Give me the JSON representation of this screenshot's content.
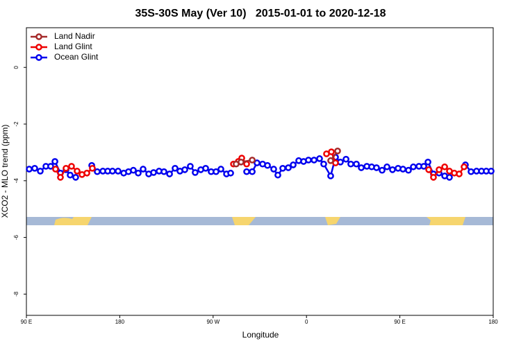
{
  "chart_data": {
    "type": "line",
    "title": "35S-30S May (Ver 10)   2015-01-01 to 2020-12-18",
    "x_label": "Longitude",
    "y_label": "XCO2 - MLO trend (ppm)",
    "xlim": [
      90,
      540
    ],
    "ylim": [
      -8.75,
      1.4
    ],
    "xticks": [
      {
        "value": 90,
        "label": "90 E"
      },
      {
        "value": 180,
        "label": "180"
      },
      {
        "value": 270,
        "label": "90 W"
      },
      {
        "value": 360,
        "label": "0"
      },
      {
        "value": 450,
        "label": "90 E"
      },
      {
        "value": 540,
        "label": "180"
      }
    ],
    "yticks": [
      0,
      -2,
      -4,
      -6,
      -8
    ],
    "legend": "top-left",
    "series": [
      {
        "name": "Land Nadir",
        "color": "#a52a2a",
        "x": [
          292.2,
          296.9,
          307.7,
          340,
          383.3,
          390.0
        ],
        "values": [
          -3.41,
          -3.34,
          -3.27,
          null,
          -3.29,
          -2.95
        ]
      },
      {
        "name": "Land Glint",
        "color": "#ee0000",
        "x": [
          118.1,
          122.8,
          128.2,
          133.5,
          138.9,
          143.6,
          148.3,
          153.6,
          220,
          289.6,
          294.3,
          297.6,
          302.3,
          340,
          379.3,
          384.0,
          388.0,
          430,
          477.8,
          482.4,
          487.8,
          493.2,
          497.8,
          502.5,
          507.2,
          511.9
        ],
        "values": [
          -3.59,
          -3.88,
          -3.56,
          -3.49,
          -3.66,
          -3.78,
          -3.73,
          -3.56,
          null,
          -3.41,
          -3.32,
          -3.2,
          -3.41,
          null,
          -3.05,
          -2.98,
          -3.37,
          null,
          -3.61,
          -3.88,
          -3.61,
          -3.51,
          -3.66,
          -3.73,
          -3.76,
          -3.51
        ]
      },
      {
        "name": "Ocean Glint",
        "color": "#0000ee",
        "x": [
          92.7,
          98.0,
          103.4,
          108.8,
          113.4,
          117.5,
          122.8,
          128.2,
          132.2,
          137.5,
          145,
          153.0,
          158.3,
          163.7,
          168.4,
          173.0,
          178.4,
          183.8,
          188.4,
          193.1,
          197.8,
          202.5,
          207.9,
          212.6,
          217.9,
          222.6,
          228.0,
          233.3,
          238.0,
          242.7,
          248.0,
          252.7,
          258.1,
          262.8,
          268.1,
          272.8,
          277.5,
          282.9,
          286.9,
          295,
          302.3,
          307.7,
          312.3,
          317.7,
          322.4,
          328.4,
          332.4,
          337.1,
          342.5,
          347.2,
          352.5,
          357.2,
          361.9,
          367.3,
          372.6,
          376.6,
          383.3,
          388.0,
          392.7,
          398.1,
          402.7,
          408.1,
          412.8,
          418.2,
          422.8,
          427.5,
          432.9,
          437.6,
          442.9,
          448.3,
          453.0,
          458.3,
          463.0,
          468.4,
          473.1,
          477.1,
          482.4,
          487.8,
          493.2,
          497.8,
          505,
          513.2,
          518.6,
          523.9,
          528.7,
          533.3,
          538.0
        ],
        "values": [
          -3.59,
          -3.56,
          -3.66,
          -3.49,
          -3.49,
          -3.32,
          -3.73,
          -3.61,
          -3.8,
          -3.88,
          null,
          -3.46,
          -3.68,
          -3.66,
          -3.66,
          -3.66,
          -3.66,
          -3.73,
          -3.68,
          -3.63,
          -3.73,
          -3.59,
          -3.76,
          -3.71,
          -3.66,
          -3.68,
          -3.76,
          -3.56,
          -3.66,
          -3.61,
          -3.49,
          -3.71,
          -3.61,
          -3.56,
          -3.68,
          -3.68,
          -3.59,
          -3.76,
          -3.73,
          null,
          -3.68,
          -3.68,
          -3.37,
          -3.41,
          -3.46,
          -3.59,
          -3.8,
          -3.56,
          -3.54,
          -3.44,
          -3.29,
          -3.32,
          -3.27,
          -3.27,
          -3.22,
          -3.41,
          -3.83,
          -3.17,
          -3.34,
          -3.24,
          -3.41,
          -3.41,
          -3.54,
          -3.49,
          -3.51,
          -3.54,
          -3.63,
          -3.51,
          -3.61,
          -3.56,
          -3.59,
          -3.63,
          -3.51,
          -3.49,
          -3.49,
          -3.34,
          -3.76,
          -3.73,
          -3.83,
          -3.88,
          null,
          -3.44,
          -3.68,
          -3.66,
          -3.66,
          -3.66,
          -3.66
        ]
      }
    ]
  }
}
